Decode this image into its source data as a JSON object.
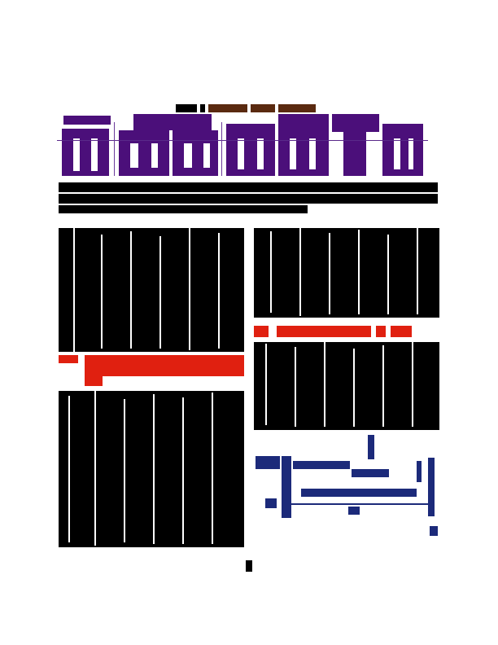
{
  "document": {
    "page_size": "letter"
  }
}
